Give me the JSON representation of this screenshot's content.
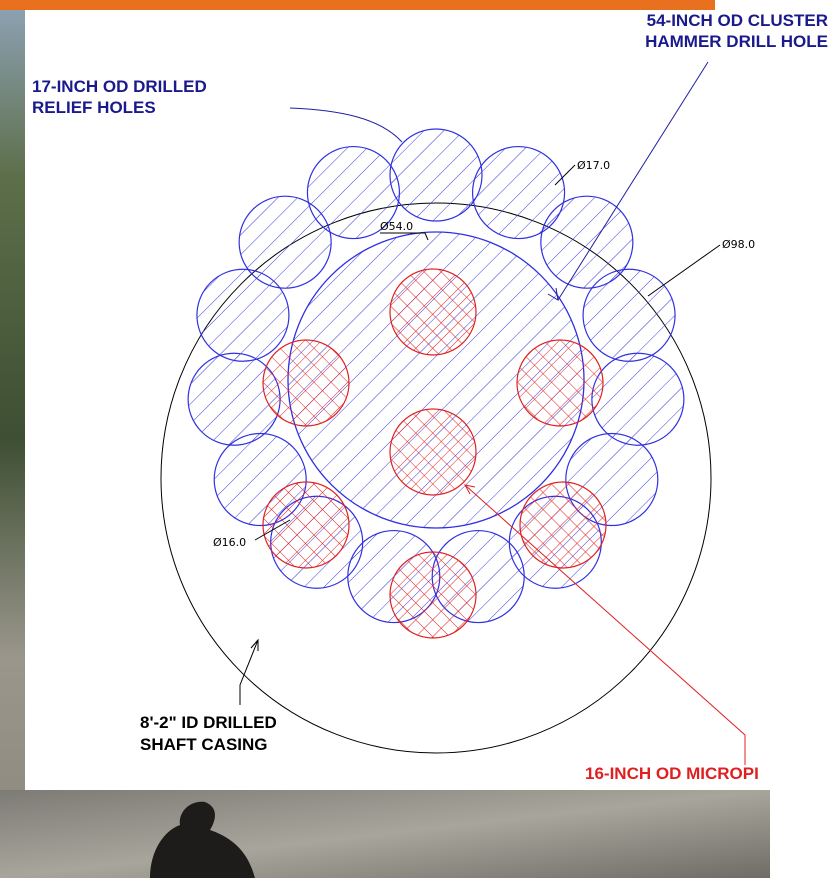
{
  "labels": {
    "cluster": [
      "54-INCH OD CLUSTER",
      "HAMMER DRILL HOLE"
    ],
    "relief": [
      "17-INCH OD DRILLED",
      "RELIEF HOLES"
    ],
    "casing": [
      "8'-2\" ID DRILLED",
      "SHAFT CASING"
    ],
    "micropile": "16-INCH OD MICROPI"
  },
  "dimensions": {
    "d17": "Ø17.0",
    "d54": "Ø54.0",
    "d98": "Ø98.0",
    "d16": "Ø16.0"
  }
}
